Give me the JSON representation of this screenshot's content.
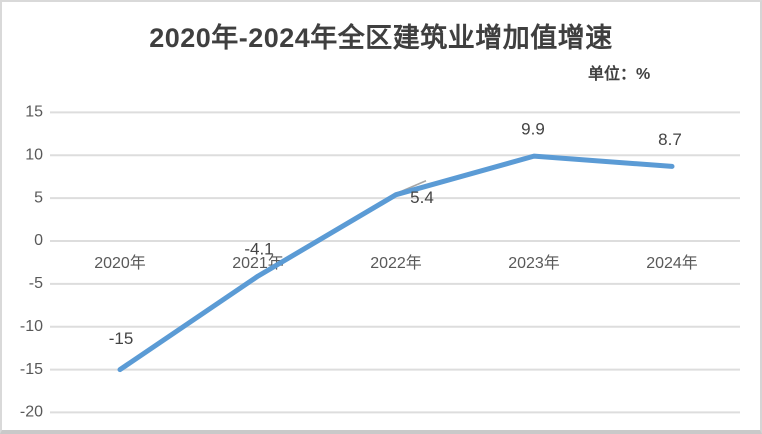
{
  "window": {
    "background": "#ffffff",
    "border_color": "#d9d9d9",
    "bottom_border_color": "#c9c9c9"
  },
  "header": {
    "title": "2020年-2024年全区建筑业增加值增速",
    "unit_label": "单位：%"
  },
  "colors": {
    "line": "#5b9bd5",
    "gridline": "#dddddd",
    "axis_text": "#595959",
    "data_label_text": "#444444",
    "title_text": "#3f3f3f",
    "leader_line": "#a6a6a6"
  },
  "chart_data": {
    "type": "line",
    "title": "2020年-2024年全区建筑业增加值增速",
    "unit": "%",
    "categories": [
      "2020年",
      "2021年",
      "2022年",
      "2023年",
      "2024年"
    ],
    "values": [
      -15,
      -4.1,
      5.4,
      9.9,
      8.7
    ],
    "data_labels": [
      "-15",
      "-4.1",
      "5.4",
      "9.9",
      "8.7"
    ],
    "series_name": "建筑业增加值增速",
    "y_ticks": [
      15,
      10,
      5,
      0,
      -5,
      -10,
      -15,
      -20
    ],
    "ylim": [
      -20,
      15
    ],
    "xlabel": "",
    "ylabel": "",
    "legend": "none",
    "grid": "horizontal",
    "line_width": 5,
    "marker": "none",
    "label_with_leader_line": "5.4"
  }
}
